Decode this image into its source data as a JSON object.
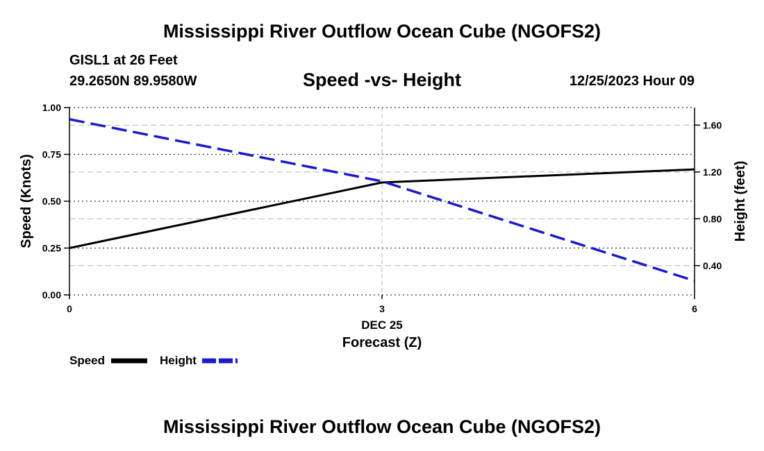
{
  "header": {
    "title": "Mississippi River Outflow Ocean Cube (NGOFS2)",
    "station": "GISL1 at 26 Feet",
    "coordinates": "29.2650N  89.9580W",
    "chart_title": "Speed -vs- Height",
    "date": "12/25/2023 Hour 09"
  },
  "footer": {
    "title": "Mississippi River Outflow Ocean Cube (NGOFS2)"
  },
  "colors": {
    "speed": "#000000",
    "height": "#1a1acc",
    "grid": "#b4b4b4"
  },
  "chart_data": {
    "type": "line",
    "title": "Speed -vs- Height",
    "x": [
      0,
      3,
      6
    ],
    "x_tick_labels": [
      "0",
      "3",
      "6"
    ],
    "x_date_label": "DEC 25",
    "xlabel": "Forecast (Z)",
    "xlim": [
      0,
      6
    ],
    "ylabel_left": "Speed (Knots)",
    "ylim_left": [
      0,
      1
    ],
    "yticks_left": [
      "0.00",
      "0.25",
      "0.50",
      "0.75",
      "1.00"
    ],
    "ylabel_right": "Height (feet)",
    "ylim_right": [
      0.15,
      1.75
    ],
    "yticks_right": [
      "0.40",
      "0.80",
      "1.20",
      "1.60"
    ],
    "series": [
      {
        "name": "Speed",
        "axis": "left",
        "style": "solid",
        "values": [
          0.25,
          0.6,
          0.67
        ]
      },
      {
        "name": "Height",
        "axis": "right",
        "style": "dashed",
        "values": [
          1.65,
          1.12,
          0.27
        ]
      }
    ],
    "legend": [
      "Speed",
      "Height"
    ],
    "grid": true
  }
}
